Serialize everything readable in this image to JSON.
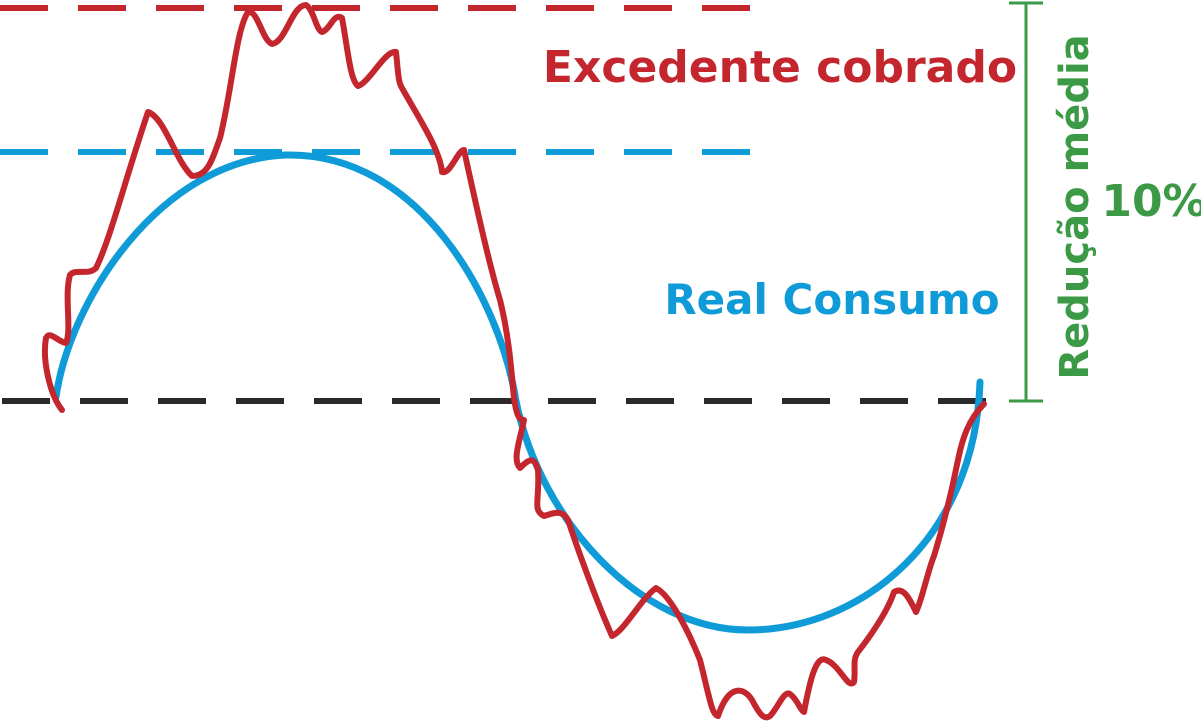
{
  "labels": {
    "excedente": "Excedente cobrado",
    "real_consumo": "Real Consumo",
    "reducao": "Redução média",
    "percent": "10%"
  },
  "colors": {
    "red": "#c4262e",
    "blue": "#0f9ad8",
    "black": "#2a2a2a",
    "green": "#3c9a46"
  }
}
